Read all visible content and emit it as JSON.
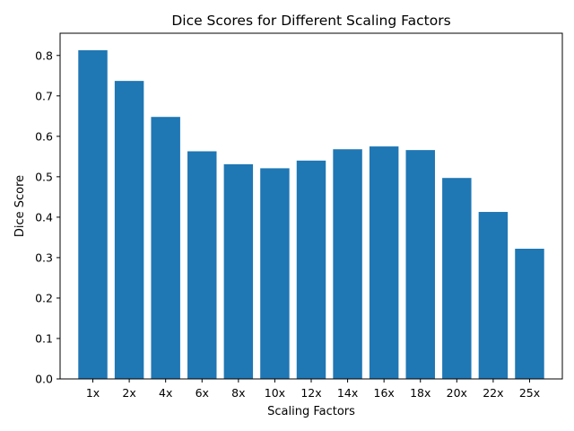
{
  "chart_data": {
    "type": "bar",
    "title": "Dice Scores for Different Scaling Factors",
    "xlabel": "Scaling Factors",
    "ylabel": "Dice Score",
    "categories": [
      "1x",
      "2x",
      "4x",
      "6x",
      "8x",
      "10x",
      "12x",
      "14x",
      "16x",
      "18x",
      "20x",
      "22x",
      "25x"
    ],
    "values": [
      0.813,
      0.737,
      0.648,
      0.563,
      0.531,
      0.521,
      0.54,
      0.568,
      0.575,
      0.566,
      0.497,
      0.413,
      0.322
    ],
    "ylim": [
      0,
      0.855
    ],
    "yticks": [
      0.0,
      0.1,
      0.2,
      0.3,
      0.4,
      0.5,
      0.6,
      0.7,
      0.8
    ],
    "ytick_labels": [
      "0.0",
      "0.1",
      "0.2",
      "0.3",
      "0.4",
      "0.5",
      "0.6",
      "0.7",
      "0.8"
    ],
    "bar_color": "#1f77b4",
    "grid": false,
    "legend": null
  }
}
